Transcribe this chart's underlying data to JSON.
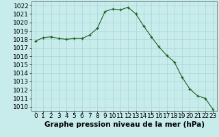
{
  "x": [
    0,
    1,
    2,
    3,
    4,
    5,
    6,
    7,
    8,
    9,
    10,
    11,
    12,
    13,
    14,
    15,
    16,
    17,
    18,
    19,
    20,
    21,
    22,
    23
  ],
  "y": [
    1017.8,
    1018.2,
    1018.3,
    1018.1,
    1018.0,
    1018.1,
    1018.1,
    1018.5,
    1019.3,
    1021.3,
    1021.6,
    1021.5,
    1021.8,
    1021.0,
    1019.6,
    1018.3,
    1017.1,
    1016.1,
    1015.3,
    1013.5,
    1012.1,
    1011.3,
    1011.0,
    1009.7
  ],
  "line_color": "#1a5c1a",
  "marker": "+",
  "bg_color": "#c8ecec",
  "grid_color": "#a8d4d4",
  "ylabel_values": [
    1010,
    1011,
    1012,
    1013,
    1014,
    1015,
    1016,
    1017,
    1018,
    1019,
    1020,
    1021,
    1022
  ],
  "xlabel_label": "Graphe pression niveau de la mer (hPa)",
  "ylim": [
    1009.5,
    1022.5
  ],
  "xlim": [
    -0.5,
    23.5
  ],
  "tick_fontsize": 6.5,
  "label_fontsize": 7.5
}
